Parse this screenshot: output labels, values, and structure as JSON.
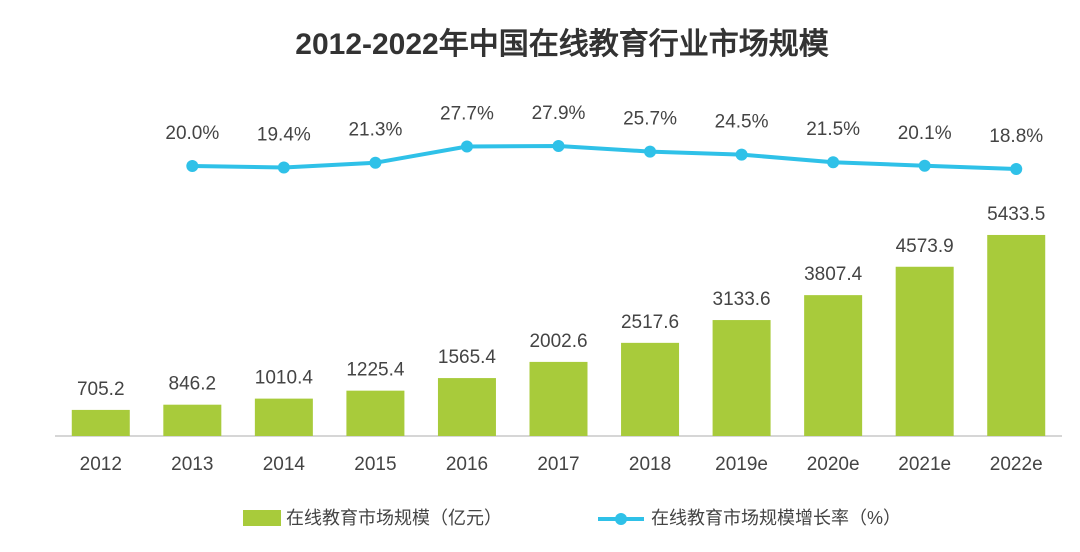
{
  "chart_data": {
    "type": "bar_line",
    "title": "2012-2022年中国在线教育行业市场规模",
    "categories": [
      "2012",
      "2013",
      "2014",
      "2015",
      "2016",
      "2017",
      "2018",
      "2019e",
      "2020e",
      "2021e",
      "2022e"
    ],
    "ylim": [
      0,
      6000
    ],
    "y2lim": [
      0,
      30
    ],
    "series": [
      {
        "name": "在线教育市场规模（亿元）",
        "type": "bar",
        "color": "#a8cb3b",
        "values": [
          705.2,
          846.2,
          1010.4,
          1225.4,
          1565.4,
          2002.6,
          2517.6,
          3133.6,
          3807.4,
          4573.9,
          5433.5
        ]
      },
      {
        "name": "在线教育市场规模增长率（%）",
        "type": "line",
        "axis": "y2",
        "color": "#2fc1e8",
        "values": [
          null,
          20.0,
          19.4,
          21.3,
          27.7,
          27.9,
          25.7,
          24.5,
          21.5,
          20.1,
          18.8
        ],
        "value_labels": [
          null,
          "20.0%",
          "19.4%",
          "21.3%",
          "27.7%",
          "27.9%",
          "25.7%",
          "24.5%",
          "21.5%",
          "20.1%",
          "18.8%"
        ]
      }
    ]
  }
}
